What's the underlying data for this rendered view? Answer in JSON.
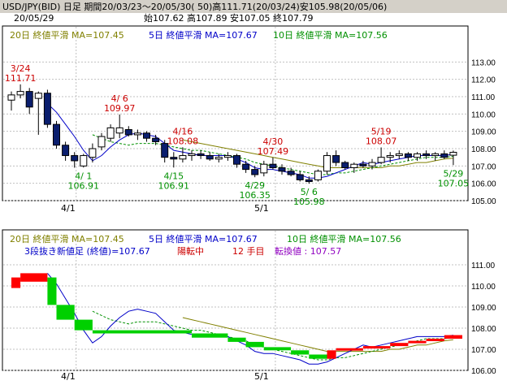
{
  "header": {
    "line1": "USD/JPY(BID) 日足 期間20/03/23〜20/05/30( 50)高111.71(20/03/24)安105.98(20/05/06)",
    "date": "20/05/29",
    "ohlc": "始107.62 高107.89 安107.05 終107.79"
  },
  "colors": {
    "bg": "#ffffff",
    "grid": "#c0c0c0",
    "ma20": "#808000",
    "ma5": "#0000c8",
    "ma10": "#009000",
    "candle_down": "#0a1e6e",
    "high_label": "#cc0000",
    "low_label": "#009000",
    "brick_up": "#ff0000",
    "brick_down": "#00d000",
    "info_blue": "#0000c8",
    "info_red": "#cc0000",
    "info_purple": "#9000c0"
  },
  "main_legend": {
    "ma20": "20日 終値平滑 MA=107.45",
    "ma5": "5日 終値平滑 MA=107.67",
    "ma10": "10日 終値平滑 MA=107.56"
  },
  "sub_legend": {
    "ma20": "20日 終値平滑 MA=107.45",
    "ma5": "5日 終値平滑 MA=107.67",
    "ma10": "10日 終値平滑 MA=107.56"
  },
  "sub_info": {
    "part1": "3段抜き新値足 (終値)=107.67",
    "part2": "陽転中",
    "part3": "12 手目",
    "part4": "転換値 : 107.57"
  },
  "x_labels": [
    "4/1",
    "5/1"
  ],
  "chart_data": [
    {
      "type": "candlestick",
      "title": "USD/JPY(BID) 日足",
      "ylim": [
        105,
        114
      ],
      "y_ticks": [
        "105.00",
        "106.00",
        "107.00",
        "108.00",
        "109.00",
        "110.00",
        "111.00",
        "112.00",
        "113.00"
      ],
      "candles": [
        {
          "o": 110.8,
          "h": 111.3,
          "l": 110.2,
          "c": 111.1
        },
        {
          "o": 111.1,
          "h": 111.71,
          "l": 110.9,
          "c": 111.3
        },
        {
          "o": 111.3,
          "h": 111.5,
          "l": 110.0,
          "c": 110.4
        },
        {
          "o": 110.9,
          "h": 111.3,
          "l": 108.8,
          "c": 111.2
        },
        {
          "o": 111.2,
          "h": 111.4,
          "l": 109.2,
          "c": 109.4
        },
        {
          "o": 109.4,
          "h": 109.6,
          "l": 108.0,
          "c": 108.2
        },
        {
          "o": 108.2,
          "h": 108.4,
          "l": 107.3,
          "c": 107.6
        },
        {
          "o": 107.6,
          "h": 107.8,
          "l": 106.9,
          "c": 107.3
        },
        {
          "o": 107.0,
          "h": 107.7,
          "l": 106.91,
          "c": 107.6
        },
        {
          "o": 107.5,
          "h": 108.3,
          "l": 107.2,
          "c": 108.0
        },
        {
          "o": 108.1,
          "h": 108.9,
          "l": 107.9,
          "c": 108.7
        },
        {
          "o": 108.6,
          "h": 109.4,
          "l": 108.4,
          "c": 109.2
        },
        {
          "o": 108.9,
          "h": 109.97,
          "l": 108.6,
          "c": 109.2
        },
        {
          "o": 109.1,
          "h": 109.3,
          "l": 108.7,
          "c": 108.8
        },
        {
          "o": 108.8,
          "h": 109.1,
          "l": 108.5,
          "c": 108.9
        },
        {
          "o": 108.9,
          "h": 109.0,
          "l": 108.4,
          "c": 108.6
        },
        {
          "o": 108.6,
          "h": 108.8,
          "l": 108.2,
          "c": 108.4
        },
        {
          "o": 108.3,
          "h": 108.5,
          "l": 107.2,
          "c": 107.5
        },
        {
          "o": 107.5,
          "h": 107.8,
          "l": 106.91,
          "c": 107.4
        },
        {
          "o": 107.4,
          "h": 108.08,
          "l": 107.2,
          "c": 107.6
        },
        {
          "o": 107.6,
          "h": 107.9,
          "l": 107.3,
          "c": 107.7
        },
        {
          "o": 107.7,
          "h": 107.9,
          "l": 107.4,
          "c": 107.6
        },
        {
          "o": 107.6,
          "h": 107.8,
          "l": 107.3,
          "c": 107.4
        },
        {
          "o": 107.4,
          "h": 107.7,
          "l": 107.2,
          "c": 107.5
        },
        {
          "o": 107.5,
          "h": 107.8,
          "l": 107.3,
          "c": 107.6
        },
        {
          "o": 107.6,
          "h": 107.7,
          "l": 106.9,
          "c": 107.1
        },
        {
          "o": 107.1,
          "h": 107.3,
          "l": 106.6,
          "c": 106.8
        },
        {
          "o": 106.8,
          "h": 107.0,
          "l": 106.35,
          "c": 106.5
        },
        {
          "o": 106.6,
          "h": 107.3,
          "l": 106.4,
          "c": 107.1
        },
        {
          "o": 107.1,
          "h": 107.49,
          "l": 106.8,
          "c": 106.9
        },
        {
          "o": 106.9,
          "h": 107.1,
          "l": 106.5,
          "c": 106.7
        },
        {
          "o": 106.7,
          "h": 106.9,
          "l": 106.4,
          "c": 106.5
        },
        {
          "o": 106.5,
          "h": 106.7,
          "l": 106.1,
          "c": 106.2
        },
        {
          "o": 106.2,
          "h": 106.4,
          "l": 105.98,
          "c": 106.1
        },
        {
          "o": 106.2,
          "h": 106.8,
          "l": 106.1,
          "c": 106.7
        },
        {
          "o": 106.7,
          "h": 107.8,
          "l": 106.5,
          "c": 107.6
        },
        {
          "o": 107.6,
          "h": 107.9,
          "l": 107.0,
          "c": 107.2
        },
        {
          "o": 107.2,
          "h": 107.3,
          "l": 106.8,
          "c": 106.9
        },
        {
          "o": 106.9,
          "h": 107.2,
          "l": 106.6,
          "c": 107.1
        },
        {
          "o": 107.1,
          "h": 107.3,
          "l": 106.9,
          "c": 107.0
        },
        {
          "o": 107.0,
          "h": 107.4,
          "l": 106.8,
          "c": 107.2
        },
        {
          "o": 107.2,
          "h": 108.07,
          "l": 107.1,
          "c": 107.5
        },
        {
          "o": 107.5,
          "h": 107.8,
          "l": 107.2,
          "c": 107.6
        },
        {
          "o": 107.6,
          "h": 107.9,
          "l": 107.4,
          "c": 107.7
        },
        {
          "o": 107.7,
          "h": 107.8,
          "l": 107.3,
          "c": 107.5
        },
        {
          "o": 107.5,
          "h": 107.8,
          "l": 107.3,
          "c": 107.7
        },
        {
          "o": 107.7,
          "h": 107.9,
          "l": 107.4,
          "c": 107.6
        },
        {
          "o": 107.6,
          "h": 107.8,
          "l": 107.3,
          "c": 107.7
        },
        {
          "o": 107.7,
          "h": 107.9,
          "l": 107.4,
          "c": 107.5
        },
        {
          "o": 107.62,
          "h": 107.89,
          "l": 107.05,
          "c": 107.79
        }
      ],
      "ma5": [
        null,
        null,
        null,
        null,
        110.6,
        110.1,
        109.4,
        108.7,
        107.9,
        107.3,
        107.6,
        108.1,
        108.5,
        108.8,
        108.9,
        108.8,
        108.7,
        108.3,
        107.9,
        107.8,
        107.7,
        107.6,
        107.6,
        107.6,
        107.6,
        107.4,
        107.2,
        106.9,
        106.8,
        106.8,
        106.7,
        106.6,
        106.5,
        106.3,
        106.3,
        106.4,
        106.6,
        106.8,
        107.0,
        107.2,
        107.1,
        107.2,
        107.3,
        107.4,
        107.5,
        107.6,
        107.6,
        107.6,
        107.6,
        107.67
      ],
      "ma10": [
        null,
        null,
        null,
        null,
        null,
        null,
        null,
        null,
        null,
        108.8,
        108.6,
        108.4,
        108.3,
        108.2,
        108.3,
        108.3,
        108.3,
        108.2,
        108.1,
        108.0,
        107.9,
        107.9,
        107.8,
        107.7,
        107.6,
        107.5,
        107.4,
        107.2,
        107.1,
        107.0,
        106.9,
        106.8,
        106.7,
        106.6,
        106.5,
        106.5,
        106.6,
        106.6,
        106.7,
        106.8,
        106.9,
        107.0,
        107.1,
        107.2,
        107.3,
        107.4,
        107.5,
        107.5,
        107.5,
        107.56
      ],
      "ma20": [
        null,
        null,
        null,
        null,
        null,
        null,
        null,
        null,
        null,
        null,
        null,
        null,
        null,
        null,
        null,
        null,
        null,
        null,
        null,
        108.5,
        108.4,
        108.3,
        108.2,
        108.1,
        108.0,
        107.9,
        107.8,
        107.7,
        107.6,
        107.5,
        107.4,
        107.3,
        107.2,
        107.1,
        107.0,
        106.9,
        106.9,
        106.9,
        106.9,
        106.9,
        106.9,
        106.9,
        107.0,
        107.0,
        107.1,
        107.2,
        107.2,
        107.3,
        107.4,
        107.45
      ],
      "annotations": [
        {
          "i": 1,
          "price": 111.71,
          "pos": "above",
          "date": "3/24",
          "value": "111.71"
        },
        {
          "i": 12,
          "price": 109.97,
          "pos": "above",
          "date": "4/ 6",
          "value": "109.97"
        },
        {
          "i": 19,
          "price": 108.08,
          "pos": "above",
          "date": "4/16",
          "value": "108.08"
        },
        {
          "i": 29,
          "price": 107.49,
          "pos": "above",
          "date": "4/30",
          "value": "107.49"
        },
        {
          "i": 41,
          "price": 108.07,
          "pos": "above",
          "date": "5/19",
          "value": "108.07"
        },
        {
          "i": 8,
          "price": 106.91,
          "pos": "below",
          "date": "4/ 1",
          "value": "106.91"
        },
        {
          "i": 18,
          "price": 106.91,
          "pos": "below",
          "date": "4/15",
          "value": "106.91"
        },
        {
          "i": 27,
          "price": 106.35,
          "pos": "below",
          "date": "4/29",
          "value": "106.35"
        },
        {
          "i": 33,
          "price": 105.98,
          "pos": "below",
          "date": "5/ 6",
          "value": "105.98"
        },
        {
          "i": 49,
          "price": 107.05,
          "pos": "below",
          "date": "5/29",
          "value": "107.05"
        }
      ]
    },
    {
      "type": "renko",
      "title": "3段抜き新値足 (終値)",
      "ylim": [
        106,
        111.5
      ],
      "y_ticks": [
        "106.00",
        "107.00",
        "108.00",
        "109.00",
        "110.00",
        "111.00"
      ],
      "bricks": [
        {
          "i0": 0,
          "i1": 1,
          "lo": 109.9,
          "hi": 110.4,
          "dir": "up"
        },
        {
          "i0": 1,
          "i1": 4,
          "lo": 110.2,
          "hi": 110.6,
          "dir": "up"
        },
        {
          "i0": 4,
          "i1": 5,
          "lo": 109.1,
          "hi": 110.4,
          "dir": "down"
        },
        {
          "i0": 5,
          "i1": 7,
          "lo": 108.4,
          "hi": 109.1,
          "dir": "down"
        },
        {
          "i0": 7,
          "i1": 9,
          "lo": 107.9,
          "hi": 108.4,
          "dir": "down"
        },
        {
          "i0": 9,
          "i1": 20,
          "lo": 107.75,
          "hi": 107.9,
          "dir": "down"
        },
        {
          "i0": 20,
          "i1": 24,
          "lo": 107.55,
          "hi": 107.75,
          "dir": "down"
        },
        {
          "i0": 24,
          "i1": 26,
          "lo": 107.35,
          "hi": 107.55,
          "dir": "down"
        },
        {
          "i0": 26,
          "i1": 28,
          "lo": 107.1,
          "hi": 107.35,
          "dir": "down"
        },
        {
          "i0": 28,
          "i1": 31,
          "lo": 106.95,
          "hi": 107.1,
          "dir": "down"
        },
        {
          "i0": 31,
          "i1": 33,
          "lo": 106.75,
          "hi": 106.95,
          "dir": "down"
        },
        {
          "i0": 33,
          "i1": 35,
          "lo": 106.55,
          "hi": 106.75,
          "dir": "down"
        },
        {
          "i0": 35,
          "i1": 36,
          "lo": 106.55,
          "hi": 106.95,
          "dir": "up"
        },
        {
          "i0": 36,
          "i1": 39,
          "lo": 106.95,
          "hi": 107.05,
          "dir": "up"
        },
        {
          "i0": 39,
          "i1": 42,
          "lo": 107.05,
          "hi": 107.15,
          "dir": "up"
        },
        {
          "i0": 42,
          "i1": 44,
          "lo": 107.15,
          "hi": 107.3,
          "dir": "up"
        },
        {
          "i0": 44,
          "i1": 46,
          "lo": 107.3,
          "hi": 107.4,
          "dir": "up"
        },
        {
          "i0": 46,
          "i1": 48,
          "lo": 107.4,
          "hi": 107.5,
          "dir": "up"
        },
        {
          "i0": 48,
          "i1": 50,
          "lo": 107.5,
          "hi": 107.67,
          "dir": "up"
        }
      ]
    }
  ]
}
